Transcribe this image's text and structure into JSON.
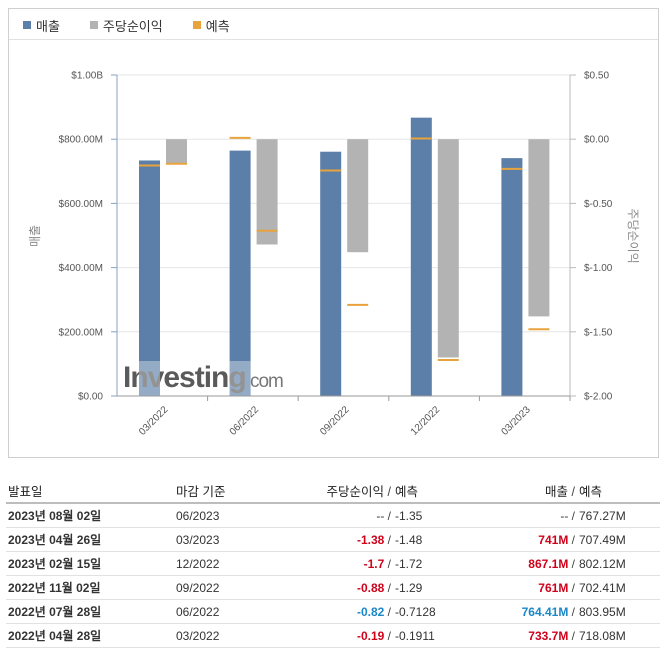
{
  "legend": [
    {
      "label": "매출",
      "color": "#5b7fa8"
    },
    {
      "label": "주당순이익",
      "color": "#b3b3b3"
    },
    {
      "label": "예측",
      "color": "#e8a33d"
    }
  ],
  "chart_data": {
    "type": "bar",
    "categories": [
      "03/2022",
      "06/2022",
      "09/2022",
      "12/2022",
      "03/2023"
    ],
    "series": [
      {
        "name": "매출",
        "axis": "left",
        "values": [
          733.7,
          764.41,
          761,
          867.1,
          741
        ],
        "unit": "M"
      },
      {
        "name": "주당순이익",
        "axis": "right",
        "values": [
          -0.19,
          -0.82,
          -0.88,
          -1.7,
          -1.38
        ]
      },
      {
        "name": "예측",
        "type": "marker",
        "revenue": [
          718.08,
          803.95,
          702.41,
          802.12,
          707.49
        ],
        "eps": [
          -0.1911,
          -0.7128,
          -1.29,
          -1.72,
          -1.48
        ]
      }
    ],
    "left_axis": {
      "title": "매출",
      "range": [
        0,
        1000
      ],
      "ticks": [
        "$0.00",
        "$200.00M",
        "$400.00M",
        "$600.00M",
        "$800.00M",
        "$1.00B"
      ]
    },
    "right_axis": {
      "title": "주당순이익",
      "range": [
        -2.0,
        0.5
      ],
      "ticks": [
        "$-2.00",
        "$-1.50",
        "$-1.00",
        "$-0.50",
        "$0.00",
        "$0.50"
      ]
    },
    "watermark": "Investing.com",
    "legend_position": "top-left"
  },
  "table": {
    "headers": {
      "date": "발표일",
      "period": "마감 기준",
      "eps": "주당순이익",
      "eps_forecast": "예측",
      "revenue": "매출",
      "revenue_forecast": "예측"
    },
    "rows": [
      {
        "date": "2023년 08월 02일",
        "period": "06/2023",
        "eps": "--",
        "eps_class": "neu",
        "eps_forecast": "-1.35",
        "revenue": "--",
        "rev_class": "neu",
        "revenue_forecast": "767.27M"
      },
      {
        "date": "2023년 04월 26일",
        "period": "03/2023",
        "eps": "-1.38",
        "eps_class": "neg",
        "eps_forecast": "-1.48",
        "revenue": "741M",
        "rev_class": "neg",
        "revenue_forecast": "707.49M"
      },
      {
        "date": "2023년 02월 15일",
        "period": "12/2022",
        "eps": "-1.7",
        "eps_class": "neg",
        "eps_forecast": "-1.72",
        "revenue": "867.1M",
        "rev_class": "neg",
        "revenue_forecast": "802.12M"
      },
      {
        "date": "2022년 11월 02일",
        "period": "09/2022",
        "eps": "-0.88",
        "eps_class": "neg",
        "eps_forecast": "-1.29",
        "revenue": "761M",
        "rev_class": "neg",
        "revenue_forecast": "702.41M"
      },
      {
        "date": "2022년 07월 28일",
        "period": "06/2022",
        "eps": "-0.82",
        "eps_class": "pos",
        "eps_forecast": "-0.7128",
        "revenue": "764.41M",
        "rev_class": "pos",
        "revenue_forecast": "803.95M"
      },
      {
        "date": "2022년 04월 28일",
        "period": "03/2022",
        "eps": "-0.19",
        "eps_class": "neg",
        "eps_forecast": "-0.1911",
        "revenue": "733.7M",
        "rev_class": "neg",
        "revenue_forecast": "718.08M"
      }
    ]
  }
}
